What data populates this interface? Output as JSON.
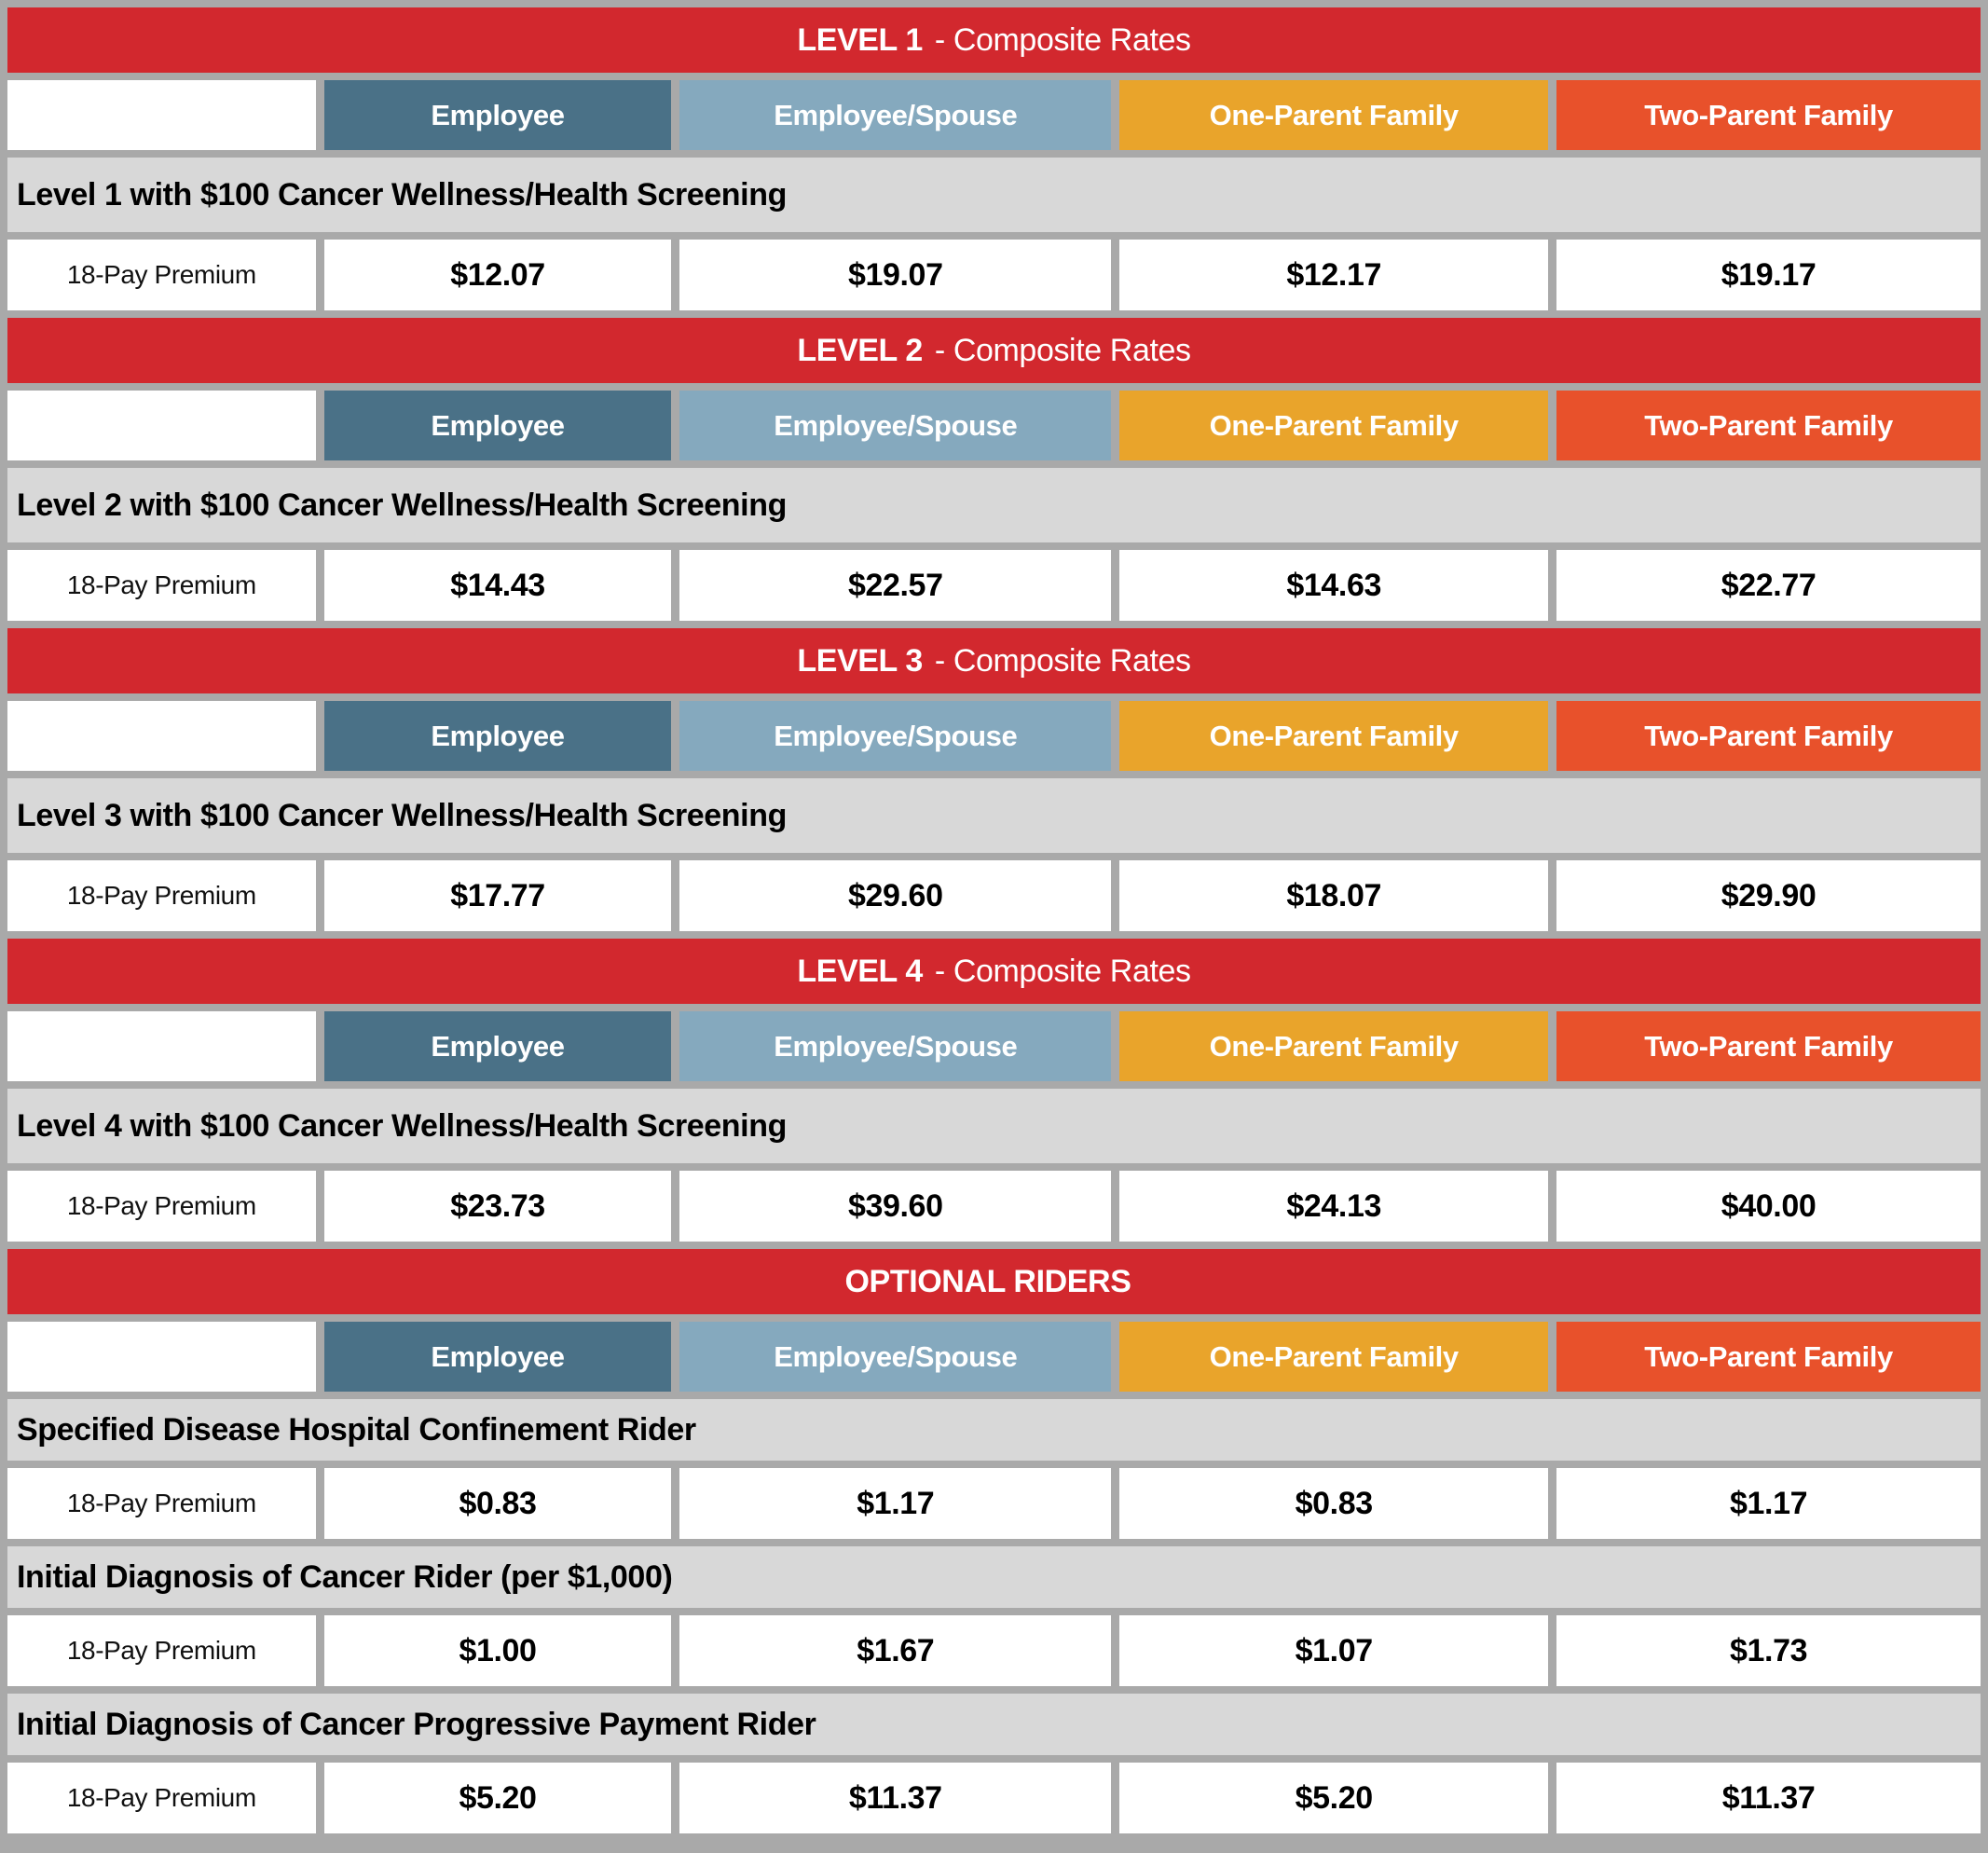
{
  "document": {
    "accent_red": "#D2282E",
    "band_gray": "#D8D8D8",
    "background_gray": "#A9A9A9",
    "columns": [
      {
        "label": "Employee",
        "color": "#4A7187"
      },
      {
        "label": "Employee/Spouse",
        "color": "#85A9BE"
      },
      {
        "label": "One-Parent Family",
        "color": "#E9A42B"
      },
      {
        "label": "Two-Parent Family",
        "color": "#E8512B"
      }
    ],
    "sections": [
      {
        "title_bold": "LEVEL 1",
        "title_rest": "- Composite Rates",
        "bands": [
          {
            "label": "Level 1 with $100 Cancer Wellness/Health Screening",
            "premium_label": "18-Pay Premium",
            "values": [
              "$12.07",
              "$19.07",
              "$12.17",
              "$19.17"
            ]
          }
        ]
      },
      {
        "title_bold": "LEVEL 2",
        "title_rest": "- Composite Rates",
        "bands": [
          {
            "label": "Level 2 with $100 Cancer Wellness/Health Screening",
            "premium_label": "18-Pay Premium",
            "values": [
              "$14.43",
              "$22.57",
              "$14.63",
              "$22.77"
            ]
          }
        ]
      },
      {
        "title_bold": "LEVEL 3",
        "title_rest": "- Composite Rates",
        "bands": [
          {
            "label": "Level 3 with $100 Cancer Wellness/Health Screening",
            "premium_label": "18-Pay Premium",
            "values": [
              "$17.77",
              "$29.60",
              "$18.07",
              "$29.90"
            ]
          }
        ]
      },
      {
        "title_bold": "LEVEL 4",
        "title_rest": "- Composite Rates",
        "bands": [
          {
            "label": "Level 4 with $100 Cancer Wellness/Health Screening",
            "premium_label": "18-Pay Premium",
            "values": [
              "$23.73",
              "$39.60",
              "$24.13",
              "$40.00"
            ]
          }
        ]
      },
      {
        "title_bold": "OPTIONAL RIDERS",
        "title_rest": "",
        "bands": [
          {
            "label": "Specified Disease Hospital Confinement Rider",
            "premium_label": "18-Pay Premium",
            "values": [
              "$0.83",
              "$1.17",
              "$0.83",
              "$1.17"
            ]
          },
          {
            "label": "Initial Diagnosis of Cancer Rider (per $1,000)",
            "premium_label": "18-Pay Premium",
            "values": [
              "$1.00",
              "$1.67",
              "$1.07",
              "$1.73"
            ]
          },
          {
            "label": "Initial Diagnosis of Cancer Progressive Payment Rider",
            "premium_label": "18-Pay Premium",
            "values": [
              "$5.20",
              "$11.37",
              "$5.20",
              "$11.37"
            ]
          }
        ]
      }
    ]
  }
}
